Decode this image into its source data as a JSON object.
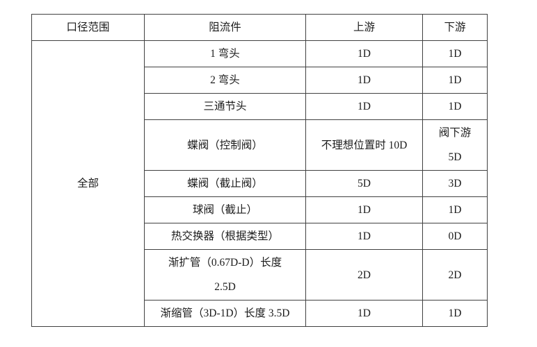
{
  "table": {
    "headers": [
      "口径范围",
      "阻流件",
      "上游",
      "下游"
    ],
    "diameter_range_value": "全部",
    "rows": [
      {
        "component": "1 弯头",
        "upstream": "1D",
        "downstream": "1D"
      },
      {
        "component": "2 弯头",
        "upstream": "1D",
        "downstream": "1D"
      },
      {
        "component": "三通节头",
        "upstream": "1D",
        "downstream": "1D"
      },
      {
        "component": "蝶阀（控制阀）",
        "upstream": "不理想位置时 10D",
        "downstream": "阀下游\n5D"
      },
      {
        "component": "蝶阀（截止阀）",
        "upstream": "5D",
        "downstream": "3D"
      },
      {
        "component": "球阀（截止）",
        "upstream": "1D",
        "downstream": "1D"
      },
      {
        "component": "热交换器（根据类型）",
        "upstream": "1D",
        "downstream": "0D"
      },
      {
        "component": "渐扩管（0.67D-D）长度\n2.5D",
        "upstream": "2D",
        "downstream": "2D"
      },
      {
        "component": "渐缩管（3D-1D）长度 3.5D",
        "upstream": "1D",
        "downstream": "1D"
      }
    ]
  }
}
